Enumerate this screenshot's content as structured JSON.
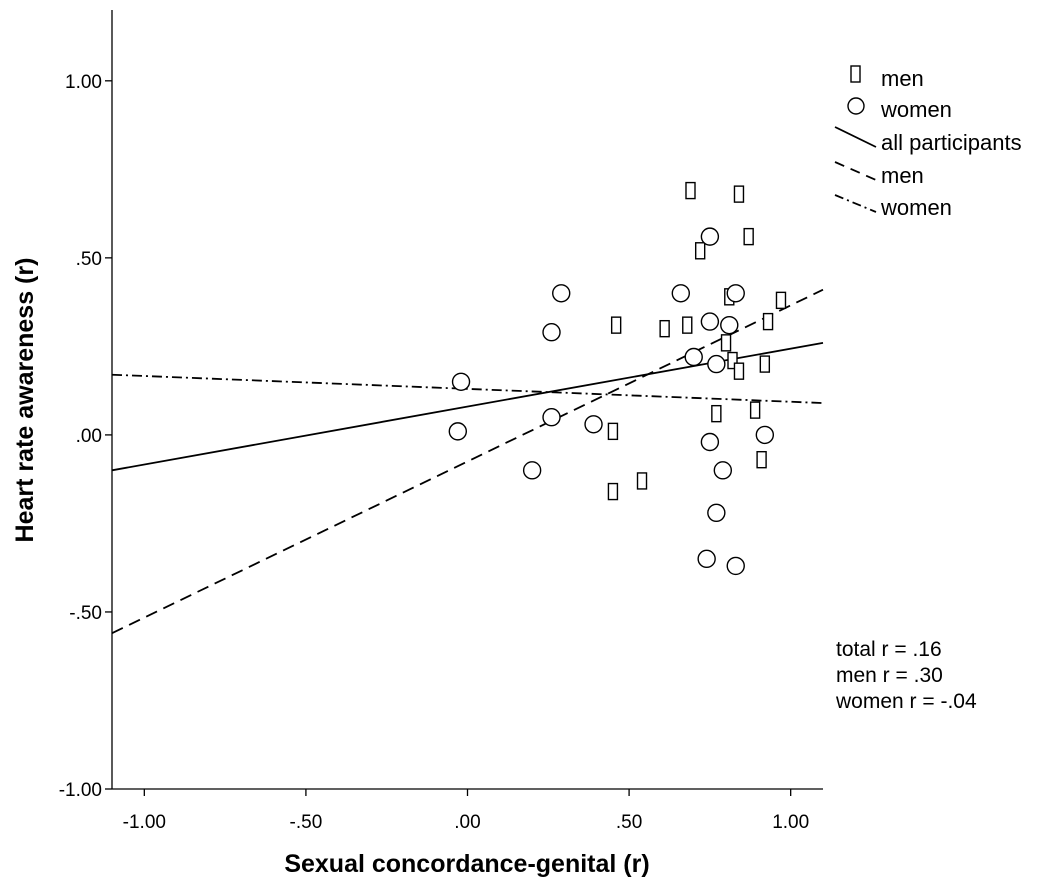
{
  "chart_data": {
    "type": "scatter",
    "xlabel": "Sexual concordance-genital (r)",
    "ylabel": "Heart rate awareness (r)",
    "xlim": [
      -1.1,
      1.1
    ],
    "ylim": [
      -1.0,
      1.2
    ],
    "x_ticks": [
      -1.0,
      -0.5,
      0.0,
      0.5,
      1.0
    ],
    "x_tick_labels": [
      "-1.00",
      "-.50",
      ".00",
      ".50",
      "1.00"
    ],
    "y_ticks": [
      -1.0,
      -0.5,
      0.0,
      0.5,
      1.0
    ],
    "y_tick_labels": [
      "-1.00",
      "-.50",
      ".00",
      ".50",
      "1.00"
    ],
    "grid": false,
    "legend_position": "top-right",
    "series": [
      {
        "name": "men",
        "marker": "rectangle",
        "points": [
          [
            0.69,
            0.69
          ],
          [
            0.84,
            0.68
          ],
          [
            0.87,
            0.56
          ],
          [
            0.72,
            0.52
          ],
          [
            0.81,
            0.39
          ],
          [
            0.97,
            0.38
          ],
          [
            0.93,
            0.32
          ],
          [
            0.46,
            0.31
          ],
          [
            0.68,
            0.31
          ],
          [
            0.61,
            0.3
          ],
          [
            0.8,
            0.26
          ],
          [
            0.82,
            0.21
          ],
          [
            0.92,
            0.2
          ],
          [
            0.84,
            0.18
          ],
          [
            0.77,
            0.06
          ],
          [
            0.89,
            0.07
          ],
          [
            0.45,
            0.01
          ],
          [
            0.91,
            -0.07
          ],
          [
            0.54,
            -0.13
          ],
          [
            0.45,
            -0.16
          ]
        ]
      },
      {
        "name": "women",
        "marker": "circle",
        "points": [
          [
            0.75,
            0.56
          ],
          [
            0.29,
            0.4
          ],
          [
            0.66,
            0.4
          ],
          [
            0.83,
            0.4
          ],
          [
            0.26,
            0.29
          ],
          [
            0.75,
            0.32
          ],
          [
            0.81,
            0.31
          ],
          [
            0.7,
            0.22
          ],
          [
            0.77,
            0.2
          ],
          [
            -0.02,
            0.15
          ],
          [
            0.26,
            0.05
          ],
          [
            0.39,
            0.03
          ],
          [
            -0.03,
            0.01
          ],
          [
            0.75,
            -0.02
          ],
          [
            0.92,
            0.0
          ],
          [
            0.2,
            -0.1
          ],
          [
            0.79,
            -0.1
          ],
          [
            0.77,
            -0.22
          ],
          [
            0.74,
            -0.35
          ],
          [
            0.83,
            -0.37
          ]
        ]
      }
    ],
    "fit_lines": [
      {
        "name": "all participants",
        "style": "solid",
        "x": [
          -1.1,
          1.1
        ],
        "y": [
          -0.1,
          0.26
        ]
      },
      {
        "name": "men",
        "style": "dashed",
        "x": [
          -1.1,
          1.1
        ],
        "y": [
          -0.56,
          0.41
        ]
      },
      {
        "name": "women",
        "style": "dash-dot",
        "x": [
          -1.1,
          1.1
        ],
        "y": [
          0.17,
          0.09
        ]
      }
    ],
    "legend_entries": [
      "men",
      "women",
      "all participants",
      "men",
      "women"
    ],
    "annotations": [
      "total r = .16",
      "men r = .30",
      "women r = -.04"
    ]
  }
}
